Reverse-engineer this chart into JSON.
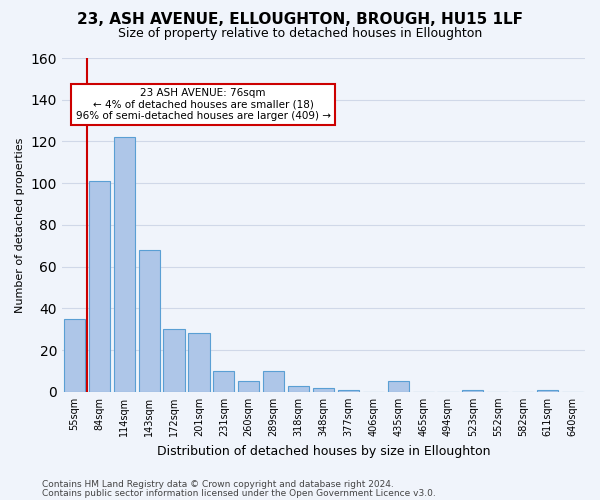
{
  "title": "23, ASH AVENUE, ELLOUGHTON, BROUGH, HU15 1LF",
  "subtitle": "Size of property relative to detached houses in Elloughton",
  "xlabel": "Distribution of detached houses by size in Elloughton",
  "ylabel": "Number of detached properties",
  "footnote1": "Contains HM Land Registry data © Crown copyright and database right 2024.",
  "footnote2": "Contains public sector information licensed under the Open Government Licence v3.0.",
  "bar_labels": [
    "55sqm",
    "84sqm",
    "114sqm",
    "143sqm",
    "172sqm",
    "201sqm",
    "231sqm",
    "260sqm",
    "289sqm",
    "318sqm",
    "348sqm",
    "377sqm",
    "406sqm",
    "435sqm",
    "465sqm",
    "494sqm",
    "523sqm",
    "552sqm",
    "582sqm",
    "611sqm",
    "640sqm"
  ],
  "bar_values": [
    35,
    101,
    122,
    68,
    30,
    28,
    10,
    5,
    10,
    3,
    2,
    1,
    0,
    5,
    0,
    0,
    1,
    0,
    0,
    1,
    0
  ],
  "bar_color": "#aec6e8",
  "bar_edge_color": "#5a9fd4",
  "subject_line_color": "#cc0000",
  "annotation_text": "23 ASH AVENUE: 76sqm\n← 4% of detached houses are smaller (18)\n96% of semi-detached houses are larger (409) →",
  "annotation_box_color": "#ffffff",
  "annotation_box_edge_color": "#cc0000",
  "ylim": [
    0,
    160
  ],
  "yticks": [
    0,
    20,
    40,
    60,
    80,
    100,
    120,
    140,
    160
  ],
  "grid_color": "#d0d8e8",
  "background_color": "#f0f4fb",
  "title_fontsize": 11,
  "subtitle_fontsize": 9,
  "ylabel_fontsize": 8,
  "xlabel_fontsize": 9,
  "tick_fontsize": 7,
  "footnote_fontsize": 6.5
}
